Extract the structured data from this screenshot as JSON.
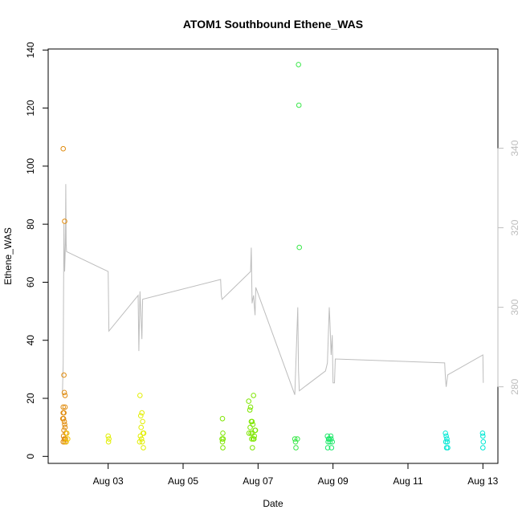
{
  "chart_data": {
    "type": "scatter",
    "title": "ATOM1 Southbound Ethene_WAS",
    "xlabel": "Date",
    "ylabel": "Ethene_WAS",
    "x_ticks": [
      "Aug 03",
      "Aug 05",
      "Aug 07",
      "Aug 09",
      "Aug 11",
      "Aug 13"
    ],
    "x_tick_days": [
      3,
      5,
      7,
      9,
      11,
      13
    ],
    "xlim": [
      1.4,
      13.4
    ],
    "ylim": [
      0,
      140
    ],
    "y_ticks": [
      0,
      20,
      40,
      60,
      80,
      100,
      120,
      140
    ],
    "y2_ticks": [
      280,
      300,
      320,
      340
    ],
    "y2lim": [
      262.5,
      364.7
    ],
    "grid": false,
    "series": [
      {
        "color": "#e08a0b",
        "points": [
          [
            1.8,
            106
          ],
          [
            1.82,
            28
          ],
          [
            1.83,
            22
          ],
          [
            1.84,
            81
          ],
          [
            1.85,
            21
          ],
          [
            1.8,
            17
          ],
          [
            1.82,
            15
          ],
          [
            1.81,
            13
          ],
          [
            1.83,
            12
          ],
          [
            1.84,
            11
          ],
          [
            1.85,
            10
          ],
          [
            1.82,
            9
          ],
          [
            1.87,
            8
          ],
          [
            1.81,
            7
          ],
          [
            1.83,
            6
          ],
          [
            1.86,
            6
          ],
          [
            1.84,
            5
          ],
          [
            1.8,
            5
          ],
          [
            1.88,
            5
          ],
          [
            1.79,
            13
          ],
          [
            1.8,
            15
          ],
          [
            1.85,
            17
          ]
        ]
      },
      {
        "color": "#f2c700",
        "points": [
          [
            1.9,
            8
          ],
          [
            1.92,
            6
          ],
          [
            1.88,
            5
          ]
        ]
      },
      {
        "color": "#e2ee00",
        "points": [
          [
            3.0,
            7
          ],
          [
            3.02,
            6
          ],
          [
            3.01,
            5
          ],
          [
            3.85,
            21
          ],
          [
            3.87,
            14
          ],
          [
            3.9,
            15
          ],
          [
            3.92,
            12
          ],
          [
            3.88,
            10
          ],
          [
            3.93,
            8
          ],
          [
            3.95,
            8
          ],
          [
            3.86,
            7
          ],
          [
            3.89,
            6
          ],
          [
            3.91,
            5
          ],
          [
            3.94,
            3
          ],
          [
            3.84,
            5
          ]
        ]
      },
      {
        "color": "#7ee600",
        "points": [
          [
            6.05,
            13
          ],
          [
            6.06,
            8
          ],
          [
            6.04,
            6
          ],
          [
            6.07,
            6
          ],
          [
            6.05,
            5
          ],
          [
            6.06,
            3
          ],
          [
            6.75,
            19
          ],
          [
            6.78,
            16
          ],
          [
            6.8,
            17
          ],
          [
            6.88,
            21
          ],
          [
            6.82,
            12
          ],
          [
            6.84,
            12
          ],
          [
            6.86,
            11
          ],
          [
            6.79,
            10
          ],
          [
            6.92,
            9
          ],
          [
            6.76,
            8
          ],
          [
            6.81,
            8
          ],
          [
            6.85,
            8
          ],
          [
            6.9,
            7
          ],
          [
            6.83,
            6
          ],
          [
            6.87,
            6
          ],
          [
            6.89,
            6
          ],
          [
            6.85,
            3
          ],
          [
            6.93,
            9
          ]
        ]
      },
      {
        "color": "#3ae84a",
        "points": [
          [
            8.08,
            135
          ],
          [
            8.09,
            121
          ],
          [
            8.1,
            72
          ],
          [
            7.98,
            6
          ],
          [
            8.05,
            6
          ],
          [
            8.0,
            5
          ],
          [
            8.01,
            3
          ]
        ]
      },
      {
        "color": "#1ee86a",
        "points": [
          [
            8.85,
            7
          ],
          [
            8.88,
            6
          ],
          [
            8.9,
            6
          ],
          [
            8.92,
            5
          ],
          [
            8.87,
            5
          ],
          [
            8.95,
            6
          ],
          [
            8.98,
            5
          ],
          [
            8.94,
            7
          ],
          [
            8.86,
            3
          ],
          [
            8.96,
            3
          ]
        ]
      },
      {
        "color": "#00e8d4",
        "points": [
          [
            12.0,
            8
          ],
          [
            12.02,
            7
          ],
          [
            12.04,
            6
          ],
          [
            12.01,
            5
          ],
          [
            12.05,
            5
          ],
          [
            12.03,
            3
          ],
          [
            12.06,
            3
          ],
          [
            12.99,
            8
          ],
          [
            13.0,
            7
          ],
          [
            13.01,
            5
          ],
          [
            13.0,
            3
          ]
        ]
      }
    ],
    "altitude_line": {
      "color": "#bdbdbd",
      "points": [
        [
          1.78,
          278
        ],
        [
          1.8,
          286
        ],
        [
          1.82,
          321
        ],
        [
          1.84,
          309
        ],
        [
          1.86,
          316
        ],
        [
          1.87,
          331
        ],
        [
          1.88,
          316
        ],
        [
          1.89,
          314
        ],
        [
          3.0,
          309
        ],
        [
          3.02,
          294
        ],
        [
          3.8,
          303
        ],
        [
          3.82,
          289
        ],
        [
          3.85,
          304
        ],
        [
          3.9,
          292
        ],
        [
          3.92,
          302
        ],
        [
          6.0,
          307
        ],
        [
          6.02,
          303
        ],
        [
          6.04,
          302
        ],
        [
          6.8,
          309
        ],
        [
          6.82,
          315
        ],
        [
          6.84,
          301
        ],
        [
          6.88,
          303
        ],
        [
          6.92,
          298
        ],
        [
          6.94,
          305
        ],
        [
          7.98,
          278
        ],
        [
          8.06,
          300
        ],
        [
          8.08,
          284
        ],
        [
          8.1,
          279
        ],
        [
          8.8,
          284
        ],
        [
          8.85,
          286
        ],
        [
          8.9,
          300
        ],
        [
          8.92,
          296
        ],
        [
          8.95,
          288
        ],
        [
          8.98,
          293
        ],
        [
          9.0,
          281
        ],
        [
          9.04,
          281
        ],
        [
          9.06,
          287
        ],
        [
          11.98,
          286
        ],
        [
          12.0,
          282
        ],
        [
          12.02,
          280
        ],
        [
          12.06,
          283
        ],
        [
          13.0,
          288
        ],
        [
          13.01,
          281
        ]
      ]
    }
  }
}
